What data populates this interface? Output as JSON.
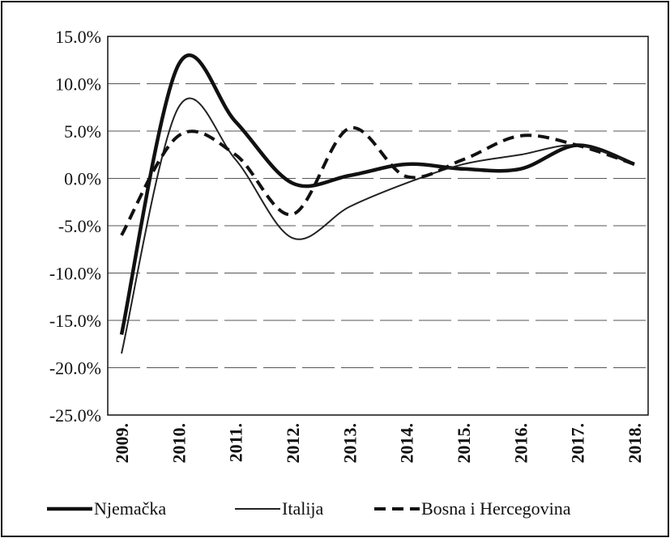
{
  "chart_data": {
    "type": "line",
    "categories": [
      "2009.",
      "2010.",
      "2011.",
      "2012.",
      "2013.",
      "2014.",
      "2015.",
      "2016.",
      "2017.",
      "2018."
    ],
    "series": [
      {
        "name": "Njemačka",
        "color": "#111111",
        "values": [
          -16.5,
          12,
          6,
          -0.5,
          0.3,
          1.5,
          1,
          1,
          3.5,
          1.5
        ]
      },
      {
        "name": "Italija",
        "color": "#222222",
        "values": [
          -18.5,
          7.5,
          2,
          -6.3,
          -3,
          -0.5,
          1.5,
          2.5,
          3.5,
          1.5
        ]
      },
      {
        "name": "Bosna i Hercegovina",
        "color": "#111111",
        "values": [
          -6,
          4.5,
          2.5,
          -3.8,
          5.3,
          0.2,
          2,
          4.5,
          3.5,
          1.5
        ]
      }
    ],
    "ylim": [
      -25,
      15
    ],
    "yticks": [
      {
        "value": -25,
        "label": "-25.0%"
      },
      {
        "value": -20,
        "label": "-20.0%"
      },
      {
        "value": -15,
        "label": "-15.0%"
      },
      {
        "value": -10,
        "label": "-10.0%"
      },
      {
        "value": -5,
        "label": "-5.0%"
      },
      {
        "value": 0,
        "label": "0.0%"
      },
      {
        "value": 5,
        "label": "5.0%"
      },
      {
        "value": 10,
        "label": "10.0%"
      },
      {
        "value": 15,
        "label": "15.0%"
      }
    ],
    "grid": true,
    "legend": "bottom"
  }
}
